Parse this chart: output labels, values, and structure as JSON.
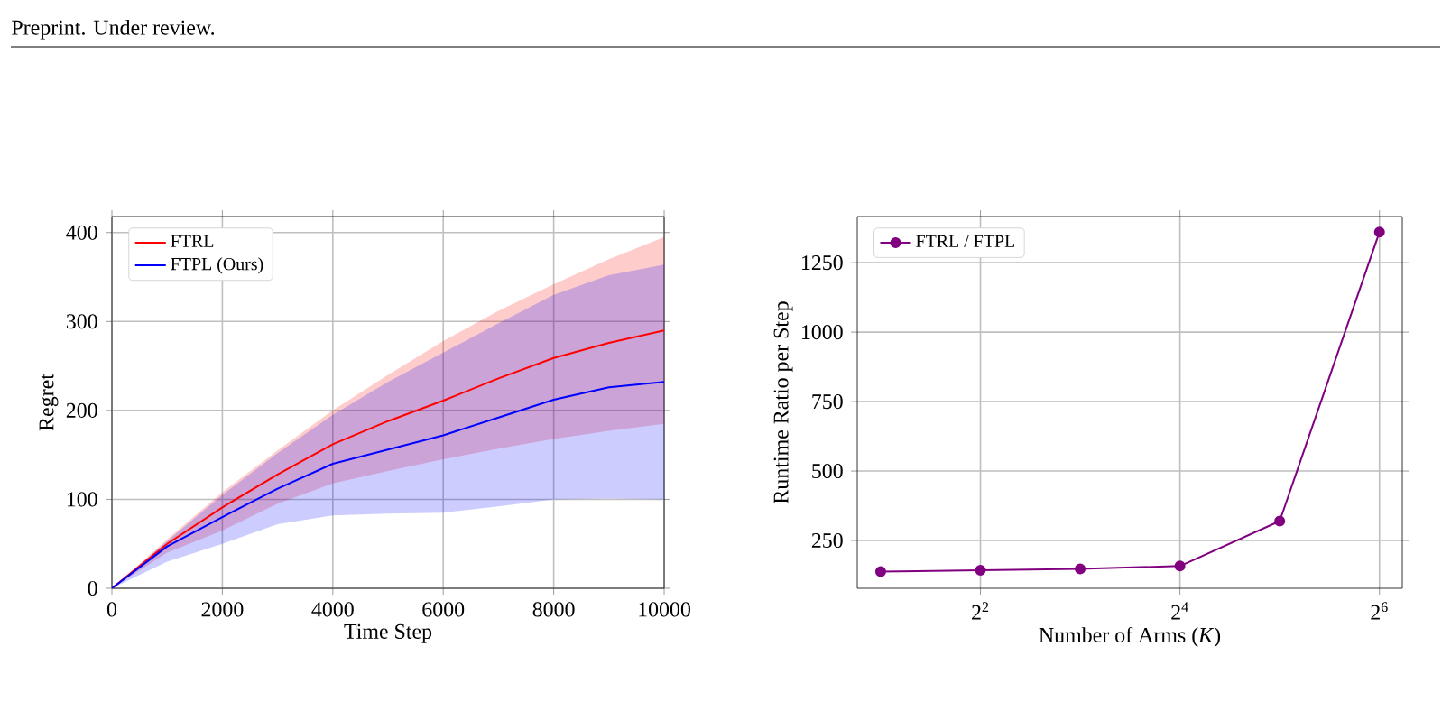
{
  "chart_data": [
    {
      "type": "line",
      "annotations": [
        "Preprint. Under review."
      ],
      "xlabel": "Time Step",
      "ylabel": "Regret",
      "x": [
        0,
        1000,
        2000,
        3000,
        4000,
        5000,
        6000,
        7000,
        8000,
        9000,
        10000
      ],
      "series": [
        {
          "name": "FTRL",
          "color": "#ff0000",
          "values": [
            0,
            50,
            91,
            128,
            162,
            188,
            211,
            236,
            259,
            276,
            290
          ],
          "lower": [
            0,
            40,
            65,
            95,
            118,
            132,
            145,
            157,
            168,
            177,
            185
          ],
          "upper": [
            0,
            55,
            108,
            155,
            200,
            240,
            278,
            312,
            342,
            370,
            395
          ]
        },
        {
          "name": "FTPL (Ours)",
          "color": "#0000ff",
          "values": [
            0,
            47,
            80,
            112,
            140,
            156,
            172,
            192,
            212,
            226,
            232
          ],
          "lower": [
            0,
            30,
            50,
            72,
            82,
            84,
            85,
            92,
            100,
            101,
            100
          ],
          "upper": [
            0,
            53,
            105,
            152,
            195,
            232,
            265,
            298,
            330,
            352,
            364
          ]
        }
      ],
      "xlim": [
        0,
        10000
      ],
      "ylim": [
        0,
        418
      ],
      "xticks": [
        0,
        2000,
        4000,
        6000,
        8000,
        10000
      ],
      "yticks": [
        0,
        100,
        200,
        300,
        400
      ],
      "grid": true,
      "legend": "top left"
    },
    {
      "type": "line",
      "xlabel": "Number of Arms (*K*)",
      "ylabel": "Runtime Ratio per Step",
      "x": [
        2,
        4,
        8,
        16,
        32,
        64
      ],
      "series": [
        {
          "name": "FTRL / FTPL",
          "color": "#800080",
          "values": [
            138,
            143,
            148,
            158,
            320,
            1360
          ]
        }
      ],
      "log": "x",
      "marker": "circle",
      "xlim": [
        1.7,
        75
      ],
      "ylim": [
        78,
        1416
      ],
      "xticks": [
        {
          "value": 4,
          "label": "2$^{2}$"
        },
        {
          "value": 16,
          "label": "2$^{4}$"
        },
        {
          "value": 64,
          "label": "2$^{6}$"
        }
      ],
      "yticks": [
        250,
        500,
        750,
        1000,
        1250
      ],
      "grid": true,
      "legend": "top left"
    }
  ]
}
